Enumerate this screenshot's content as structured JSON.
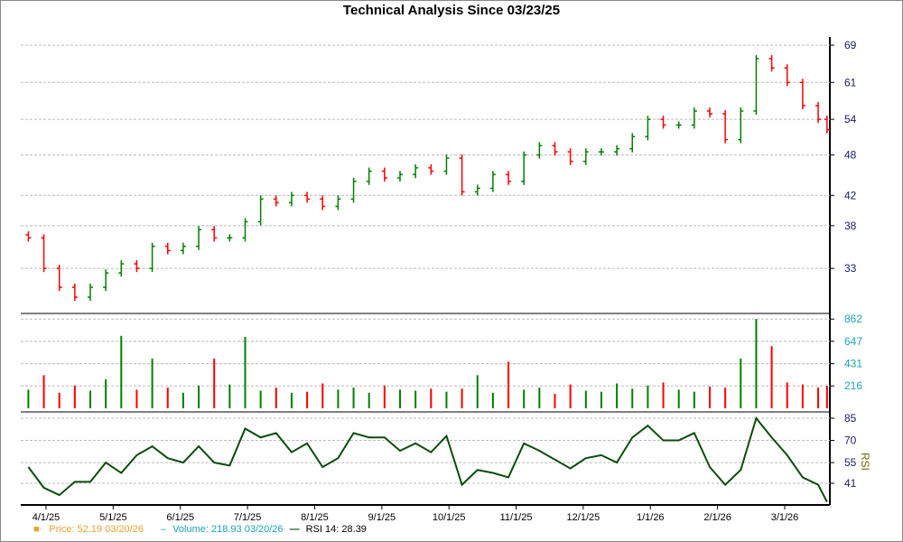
{
  "chart_data": [
    {
      "type": "ohlc",
      "title": "Technical Analysis Since 03/23/25",
      "scale": "log",
      "yticks": [
        69,
        61,
        54,
        48,
        42,
        38,
        33
      ],
      "xticks": [
        "4/1/25",
        "5/1/25",
        "6/1/25",
        "7/1/25",
        "8/1/25",
        "9/1/25",
        "10/1/25",
        "11/1/25",
        "12/1/25",
        "1/1/26",
        "2/1/26",
        "3/1/26"
      ],
      "x": [
        "2025-03-24",
        "2025-03-31",
        "2025-04-07",
        "2025-04-14",
        "2025-04-21",
        "2025-04-28",
        "2025-05-05",
        "2025-05-12",
        "2025-05-19",
        "2025-05-26",
        "2025-06-02",
        "2025-06-09",
        "2025-06-16",
        "2025-06-23",
        "2025-06-30",
        "2025-07-07",
        "2025-07-14",
        "2025-07-21",
        "2025-07-28",
        "2025-08-04",
        "2025-08-11",
        "2025-08-18",
        "2025-08-25",
        "2025-09-01",
        "2025-09-08",
        "2025-09-15",
        "2025-09-22",
        "2025-09-29",
        "2025-10-06",
        "2025-10-13",
        "2025-10-20",
        "2025-10-27",
        "2025-11-03",
        "2025-11-10",
        "2025-11-17",
        "2025-11-24",
        "2025-12-01",
        "2025-12-08",
        "2025-12-15",
        "2025-12-22",
        "2025-12-29",
        "2026-01-05",
        "2026-01-12",
        "2026-01-19",
        "2026-01-26",
        "2026-02-02",
        "2026-02-09",
        "2026-02-16",
        "2026-02-23",
        "2026-03-02",
        "2026-03-09",
        "2026-03-16",
        "2026-03-20"
      ],
      "close": [
        36.5,
        33,
        31,
        30,
        31,
        32.5,
        33.5,
        33,
        35.5,
        35,
        35.5,
        37.5,
        36.5,
        36.5,
        38.5,
        41.5,
        41,
        42,
        41.5,
        40.5,
        41.5,
        44,
        45.5,
        44.5,
        45,
        46,
        45.5,
        47.5,
        42.5,
        43,
        45,
        44,
        48,
        49.5,
        48.5,
        47,
        48.5,
        48.5,
        49,
        51,
        54,
        53,
        53,
        55.5,
        55,
        50.5,
        55.5,
        66,
        64,
        61,
        56.5,
        54,
        52.19
      ],
      "up_color": "#008000",
      "down_color": "#ff0000"
    },
    {
      "type": "bar",
      "name": "Volume",
      "yticks": [
        862,
        647,
        431,
        216
      ],
      "color": "#1aa3b8",
      "values": [
        180,
        320,
        150,
        220,
        170,
        280,
        700,
        180,
        480,
        200,
        150,
        220,
        480,
        230,
        690,
        170,
        200,
        150,
        160,
        240,
        180,
        200,
        150,
        220,
        180,
        170,
        190,
        160,
        190,
        320,
        150,
        450,
        180,
        200,
        140,
        230,
        170,
        160,
        240,
        190,
        220,
        250,
        180,
        160,
        210,
        200,
        480,
        862,
        600,
        250,
        230,
        200,
        218.93
      ]
    },
    {
      "type": "line",
      "name": "RSI 14",
      "ylabel": "RSI",
      "yticks": [
        85,
        70,
        55,
        41
      ],
      "ylim": [
        31,
        85
      ],
      "color": "#0b4d0b",
      "values": [
        52,
        38,
        33,
        42,
        42,
        55,
        48,
        60,
        66,
        58,
        55,
        66,
        55,
        53,
        78,
        72,
        75,
        62,
        68,
        52,
        58,
        75,
        72,
        72,
        63,
        68,
        62,
        73,
        40,
        50,
        48,
        45,
        68,
        63,
        57,
        51,
        58,
        60,
        55,
        72,
        80,
        70,
        70,
        75,
        52,
        40,
        50,
        85,
        72,
        60,
        45,
        40,
        28.39
      ]
    }
  ],
  "legend": {
    "price": "Price: 52.19  03/20/26",
    "volume": "Volume: 218.93  03/20/26",
    "rsi": "RSI 14: 28.39",
    "price_color": "#f0a030",
    "volume_color": "#1aa3b8",
    "rsi_color": "#0b4d0b"
  }
}
